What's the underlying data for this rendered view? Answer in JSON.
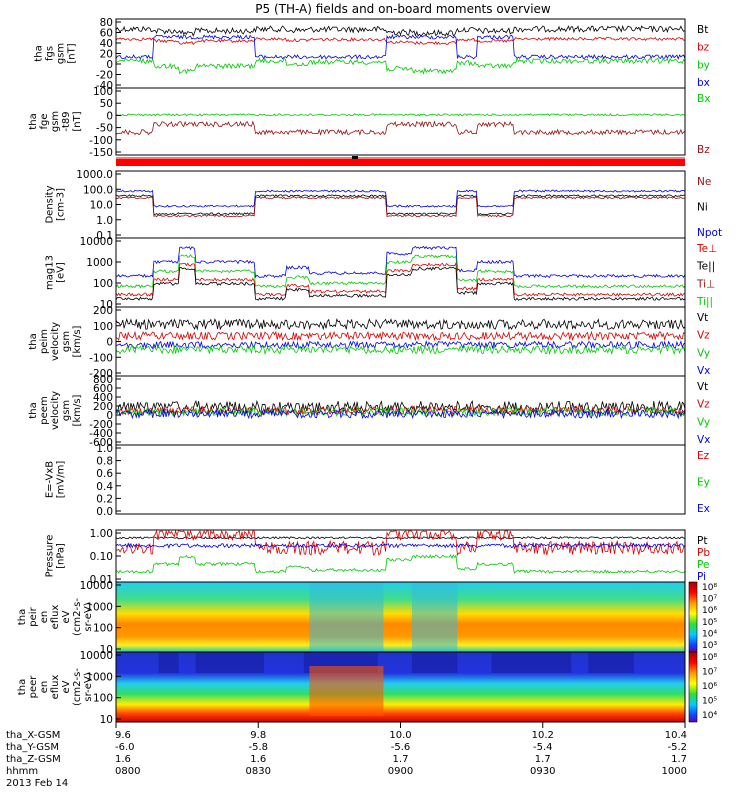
{
  "title": "P5 (TH-A) fields and on-board moments overview",
  "colors": {
    "black": "#000000",
    "red": "#dd0000",
    "green": "#00cc00",
    "blue": "#0000ee",
    "darkred": "#991111"
  },
  "chart_data": [
    {
      "type": "line",
      "ylabel": [
        "tha",
        "fgs",
        "gsm",
        "[nT]"
      ],
      "yticks": [
        "80",
        "60",
        "40",
        "20",
        "0",
        "-20",
        "-40"
      ],
      "ylim": [
        -50,
        85
      ],
      "legend": [
        {
          "text": "Bt",
          "color": "black"
        },
        {
          "text": "bz",
          "color": "red"
        },
        {
          "text": "by",
          "color": "green"
        },
        {
          "text": "bx",
          "color": "blue"
        }
      ]
    },
    {
      "type": "line",
      "ylabel": [
        "tha",
        "fge",
        "gsm",
        "-t89",
        "[nT]"
      ],
      "yticks": [
        "100",
        "50",
        "0",
        "-50",
        "-100",
        "-150"
      ],
      "ylim": [
        -180,
        110
      ],
      "legend": [
        {
          "text": "Bx",
          "color": "green"
        },
        {
          "text": "Bz",
          "color": "darkred"
        }
      ]
    },
    {
      "type": "line",
      "ylabel": [
        "Density",
        "[cm-3]"
      ],
      "yticks": [
        "1000.0",
        "100.0",
        "10.0",
        "1.0",
        "0.1"
      ],
      "ylim": [
        0.1,
        1000
      ],
      "legend": [
        {
          "text": "Ne",
          "color": "darkred"
        },
        {
          "text": "Ni",
          "color": "black"
        },
        {
          "text": "Npot",
          "color": "blue"
        }
      ]
    },
    {
      "type": "line",
      "ylabel": [
        "mag13",
        "[eV]"
      ],
      "yticks": [
        "10000",
        "1000",
        "100",
        "10"
      ],
      "ylim": [
        10,
        10000
      ],
      "legend": [
        {
          "text": "Te⊥",
          "color": "red"
        },
        {
          "text": "Te||",
          "color": "black"
        },
        {
          "text": "Ti⊥",
          "color": "darkred"
        },
        {
          "text": "Ti||",
          "color": "green"
        }
      ]
    },
    {
      "type": "line",
      "ylabel": [
        "tha",
        "peim",
        "velocity",
        "gsm",
        "[km/s]"
      ],
      "yticks": [
        "200",
        "100",
        "0",
        "-100",
        "-200"
      ],
      "ylim": [
        -200,
        200
      ],
      "legend": [
        {
          "text": "Vt",
          "color": "black"
        },
        {
          "text": "Vz",
          "color": "red"
        },
        {
          "text": "Vy",
          "color": "green"
        },
        {
          "text": "Vx",
          "color": "blue"
        }
      ]
    },
    {
      "type": "line",
      "ylabel": [
        "tha",
        "peem",
        "velocity",
        "gsm",
        "[km/s]"
      ],
      "yticks": [
        "800",
        "600",
        "400",
        "200",
        "0",
        "-200",
        "-400",
        "-600"
      ],
      "ylim": [
        -600,
        800
      ],
      "legend": [
        {
          "text": "Vt",
          "color": "black"
        },
        {
          "text": "Vz",
          "color": "red"
        },
        {
          "text": "Vy",
          "color": "green"
        },
        {
          "text": "Vx",
          "color": "blue"
        }
      ]
    },
    {
      "type": "line",
      "ylabel": [
        "E=-VxB",
        "[mV/m]"
      ],
      "yticks": [
        "1.0",
        "0.8",
        "0.6",
        "0.4",
        "0.2",
        "0.0"
      ],
      "ylim": [
        0,
        1
      ],
      "legend": [
        {
          "text": "Ez",
          "color": "red"
        },
        {
          "text": "Ey",
          "color": "green"
        },
        {
          "text": "Ex",
          "color": "blue"
        }
      ]
    },
    {
      "type": "line",
      "ylabel": [
        "Pressure",
        "[nPa]"
      ],
      "yticks": [
        "1.00",
        "0.10",
        "0.01"
      ],
      "ylim": [
        0.01,
        1
      ],
      "legend": [
        {
          "text": "Pt",
          "color": "black"
        },
        {
          "text": "Pb",
          "color": "red"
        },
        {
          "text": "Pe",
          "color": "green"
        },
        {
          "text": "Pi",
          "color": "blue"
        }
      ]
    },
    {
      "type": "heatmap",
      "ylabel": [
        "tha",
        "peir",
        "en",
        "eflux",
        "eV",
        "(cm2-s-",
        "sr-eV)"
      ],
      "yticks": [
        "10000",
        "1000",
        "100",
        "10"
      ],
      "ylim": [
        10,
        20000
      ]
    },
    {
      "type": "heatmap",
      "ylabel": [
        "tha",
        "peer",
        "en",
        "eflux",
        "eV",
        "(cm2-s-",
        "sr-eV)"
      ],
      "yticks": [
        "10000",
        "1000",
        "100",
        "10"
      ],
      "ylim": [
        10,
        20000
      ]
    }
  ],
  "colorbars": [
    {
      "labels": [
        "10⁸",
        "10⁷",
        "10⁶",
        "10⁵",
        "10⁴",
        "10³"
      ]
    },
    {
      "labels": [
        "10⁸",
        "10⁷",
        "10⁶",
        "10⁵",
        "10⁴"
      ]
    }
  ],
  "xaxis": {
    "row_labels": [
      "tha_X-GSM",
      "tha_Y-GSM",
      "tha_Z-GSM",
      "hhmm",
      "2013 Feb 14"
    ],
    "ticks": [
      {
        "x": "9.6",
        "y": "-6.0",
        "z": "1.6",
        "hhmm": "0800"
      },
      {
        "x": "9.8",
        "y": "-5.8",
        "z": "1.6",
        "hhmm": "0830"
      },
      {
        "x": "10.0",
        "y": "-5.6",
        "z": "1.7",
        "hhmm": "0900"
      },
      {
        "x": "10.2",
        "y": "-5.4",
        "z": "1.7",
        "hhmm": "0930"
      },
      {
        "x": "10.4",
        "y": "-5.2",
        "z": "1.7",
        "hhmm": "1000"
      }
    ]
  }
}
